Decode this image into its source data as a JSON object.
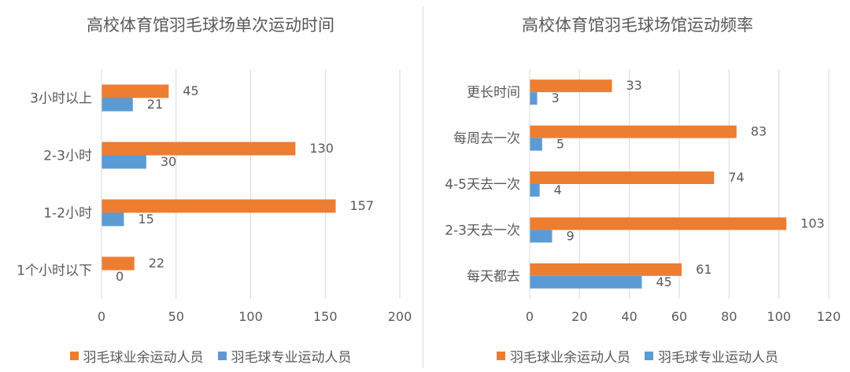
{
  "colors": {
    "amateur": "#ED7D31",
    "pro": "#5B9BD5",
    "grid": "#d9d9d9",
    "text": "#595959"
  },
  "chart_data": [
    {
      "type": "bar",
      "orientation": "horizontal",
      "title": "高校体育馆羽毛球场单次运动时间",
      "categories": [
        "1个小时以下",
        "1-2小时",
        "2-3小时",
        "3小时以上"
      ],
      "series": [
        {
          "name": "羽毛球业余运动人员",
          "values": [
            22,
            157,
            130,
            45
          ]
        },
        {
          "name": "羽毛球专业运动人员",
          "values": [
            0,
            15,
            30,
            21
          ]
        }
      ],
      "xlim": [
        0,
        200
      ],
      "xticks": [
        0,
        50,
        100,
        150,
        200
      ],
      "grid": true,
      "legend": "bottom"
    },
    {
      "type": "bar",
      "orientation": "horizontal",
      "title": "高校体育馆羽毛球场馆运动频率",
      "categories": [
        "每天都去",
        "2-3天去一次",
        "4-5天去一次",
        "每周去一次",
        "更长时间"
      ],
      "series": [
        {
          "name": "羽毛球业余运动人员",
          "values": [
            61,
            103,
            74,
            83,
            33
          ]
        },
        {
          "name": "羽毛球专业运动人员",
          "values": [
            45,
            9,
            4,
            5,
            3
          ]
        }
      ],
      "xlim": [
        0,
        120
      ],
      "xticks": [
        0,
        20,
        40,
        60,
        80,
        100,
        120
      ],
      "grid": true,
      "legend": "bottom"
    }
  ]
}
